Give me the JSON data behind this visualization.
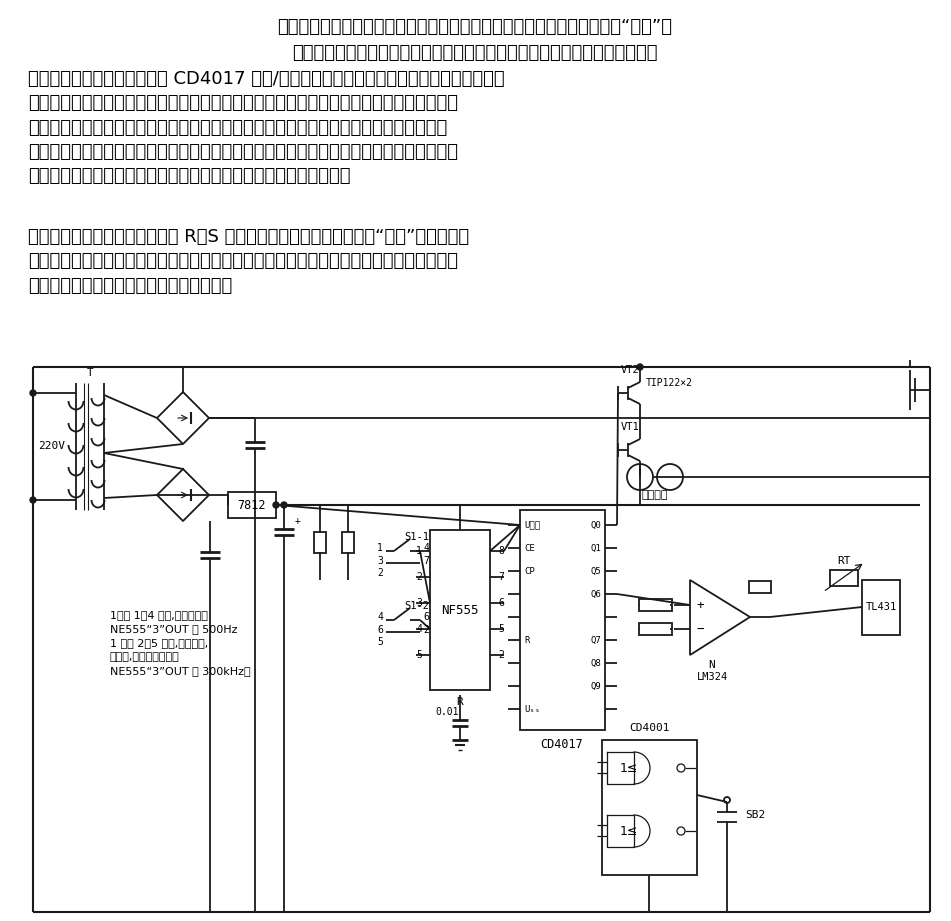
{
  "background_color": "#ffffff",
  "figsize": [
    9.51,
    9.21
  ],
  "dpi": 100,
  "line_color": "#1a1a1a",
  "text_color": "#000000",
  "para1": "本充电器采用交流正、反向脉冲调制式充电的方法对电池进行高速的电能“灌装”。",
  "para2": "脉冲控制部分由振荡器、比较器、开关电路、锁定部分和脉冲分配部分构成。",
  "para3": "　　来自振荡器的脉冲通过由 CD4017 比较/分配器来控制正向和反向充电、间隙停充、取样\n时序各部分所占的脉冲宽度。分配器输出的长脉冲用来控制正向充电开关管；反向充电、间\n隙停充及取样由短脉冲来控制。充放电开关管使用大功率、大电流的晶体三极管或达林顿\n管。经过处理的控制信号提供给开关管恒定的基极电流，这样可以使开关管输出恒定的电流\n对充电电池进行充电。须指出的是镀镁电池不适合用恒压充电方式。",
  "para4": "　　开关的锁定控制采用或非门 R－S 触发器来完成。当比较器在输出“充满”信号后可以\n使充放电开关永久性锁定在关闭状态，除非进行人工解除。这样，便可以在无人监管时放心\n地使用本充电器而不必担心过充损伤电池。",
  "note_text": "1拨在 1、4 处时,为正常充电\nNE555“3”OUT 约 500Hz\n1 拨在 2、5 处时,为对废弃,\n旧电池,进行修复时充电\nNE555“3”OUT 约 300kHz。",
  "hengwen": "恒温元件"
}
